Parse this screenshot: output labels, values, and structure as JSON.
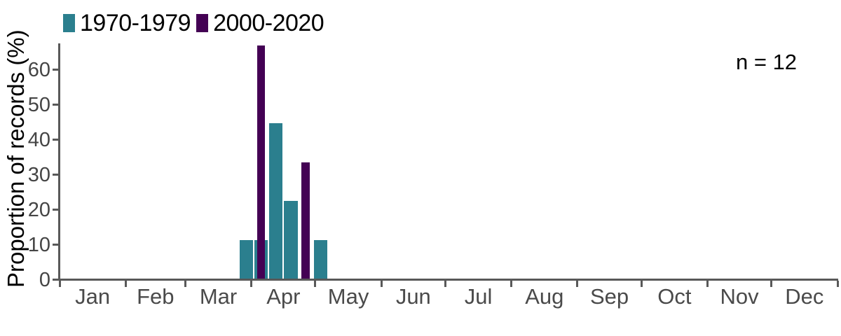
{
  "chart_data": {
    "type": "bar",
    "title": "",
    "xlabel": "",
    "ylabel": "Proportion of records (%)",
    "annotation": "n = 12",
    "ylim": [
      0,
      67
    ],
    "yticks": [
      0,
      10,
      20,
      30,
      40,
      50,
      60
    ],
    "grid": "off",
    "legend_position": "top-left",
    "x_axis": {
      "months": [
        "Jan",
        "Feb",
        "Mar",
        "Apr",
        "May",
        "Jun",
        "Jul",
        "Aug",
        "Sep",
        "Oct",
        "Nov",
        "Dec"
      ],
      "month_days": [
        31,
        28,
        31,
        30,
        31,
        30,
        31,
        31,
        30,
        31,
        30,
        31
      ],
      "total_days": 365
    },
    "bin_width_days": 7,
    "series": [
      {
        "name": "1970-1979",
        "color": "#2b7f8e",
        "bar_width_days": 6.3,
        "bars": [
          {
            "bin_start_day": 84,
            "value": 11.1
          },
          {
            "bin_start_day": 91,
            "value": 11.1
          },
          {
            "bin_start_day": 98,
            "value": 44.4
          },
          {
            "bin_start_day": 105,
            "value": 22.2
          },
          {
            "bin_start_day": 119,
            "value": 11.1
          }
        ]
      },
      {
        "name": "2000-2020",
        "color": "#440154",
        "bar_width_days": 3.8,
        "bars": [
          {
            "bin_start_day": 91,
            "value": 66.7
          },
          {
            "bin_start_day": 112,
            "value": 33.3
          }
        ]
      }
    ],
    "colors": {
      "axis": "#595959",
      "tick_label": "#454545",
      "text": "#000000"
    }
  }
}
